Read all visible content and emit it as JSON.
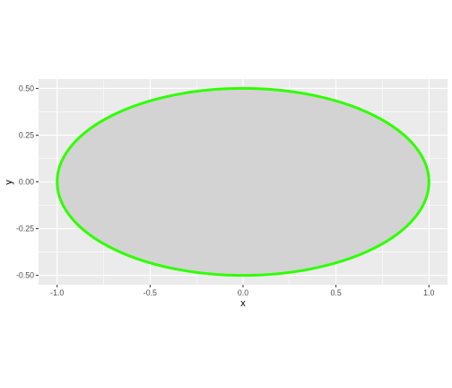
{
  "chart_data": {
    "type": "area",
    "title": "",
    "xlabel": "x",
    "ylabel": "y",
    "xlim": [
      -1.1,
      1.1
    ],
    "ylim": [
      -0.55,
      0.55
    ],
    "x_ticks": [
      -1.0,
      -0.5,
      0.0,
      0.5,
      1.0
    ],
    "x_tick_labels": [
      "-1.0",
      "-0.5",
      "0.0",
      "0.5",
      "1.0"
    ],
    "y_ticks": [
      -0.5,
      -0.25,
      0.0,
      0.25,
      0.5
    ],
    "y_tick_labels": [
      "-0.50",
      "-0.25",
      "0.00",
      "0.25",
      "0.50"
    ],
    "grid": true,
    "shape": {
      "kind": "ellipse",
      "center": [
        0,
        0
      ],
      "x_radius": 1.0,
      "y_radius": 0.5
    },
    "colors": {
      "fill": "#d3d3d3",
      "outline": "#2eff00",
      "panel_background": "#ebebeb",
      "grid": "#ffffff"
    }
  }
}
